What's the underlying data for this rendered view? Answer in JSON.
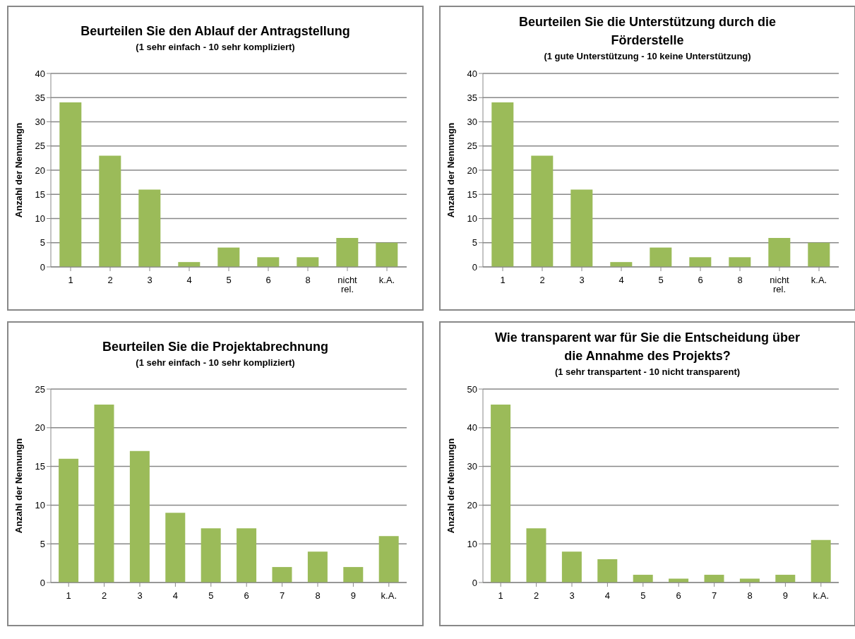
{
  "chart_data": [
    {
      "type": "bar",
      "title": "Beurteilen Sie den Ablauf der Antragstellung",
      "subtitle": "(1 sehr einfach  - 10 sehr kompliziert)",
      "ylabel": "Anzahl der Nennungn",
      "categories": [
        "1",
        "2",
        "3",
        "4",
        "5",
        "6",
        "8",
        "nicht rel.",
        "k.A."
      ],
      "values": [
        34,
        23,
        16,
        1,
        4,
        2,
        2,
        6,
        5
      ],
      "color": "#9bbb59",
      "ylim": [
        0,
        40
      ],
      "yticks": [
        0,
        5,
        10,
        15,
        20,
        25,
        30,
        35,
        40
      ],
      "grid": "y"
    },
    {
      "type": "bar",
      "title": "Beurteilen Sie die Unterstützung durch die Förderstelle",
      "subtitle": "(1 gute Unterstützung - 10 keine Unterstützung)",
      "ylabel": "Anzahl der Nennungn",
      "categories": [
        "1",
        "2",
        "3",
        "4",
        "5",
        "6",
        "8",
        "nicht rel.",
        "k.A."
      ],
      "values": [
        34,
        23,
        16,
        1,
        4,
        2,
        2,
        6,
        5
      ],
      "color": "#9bbb59",
      "ylim": [
        0,
        40
      ],
      "yticks": [
        0,
        5,
        10,
        15,
        20,
        25,
        30,
        35,
        40
      ],
      "grid": "y"
    },
    {
      "type": "bar",
      "title": "Beurteilen Sie die Projektabrechnung",
      "subtitle": "(1 sehr einfach  - 10 sehr kompliziert)",
      "ylabel": "Anzahl der Nennungn",
      "categories": [
        "1",
        "2",
        "3",
        "4",
        "5",
        "6",
        "7",
        "8",
        "9",
        "k.A."
      ],
      "values": [
        16,
        23,
        17,
        9,
        7,
        7,
        2,
        4,
        2,
        6
      ],
      "color": "#9bbb59",
      "ylim": [
        0,
        25
      ],
      "yticks": [
        0,
        5,
        10,
        15,
        20,
        25
      ],
      "grid": "y"
    },
    {
      "type": "bar",
      "title": "Wie transparent war für Sie die Entscheidung über die Annahme des Projekts?",
      "subtitle": "(1 sehr transpartent - 10 nicht transparent)",
      "ylabel": "Anzahl der Nennungn",
      "categories": [
        "1",
        "2",
        "3",
        "4",
        "5",
        "6",
        "7",
        "8",
        "9",
        "k.A."
      ],
      "values": [
        46,
        14,
        8,
        6,
        2,
        1,
        2,
        1,
        2,
        11
      ],
      "color": "#9bbb59",
      "ylim": [
        0,
        50
      ],
      "yticks": [
        0,
        10,
        20,
        30,
        40,
        50
      ],
      "grid": "y"
    }
  ]
}
